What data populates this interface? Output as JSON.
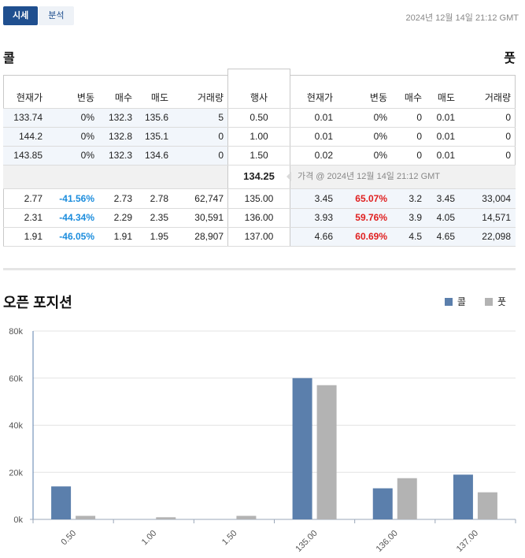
{
  "tabs": [
    {
      "label": "시세",
      "active": true
    },
    {
      "label": "분석",
      "active": false
    }
  ],
  "timestamp": "2024년 12월 14일 21:12 GMT",
  "calls_label": "콜",
  "puts_label": "풋",
  "headers": {
    "call": [
      "현재가",
      "변동",
      "매수",
      "매도",
      "거래량"
    ],
    "strike": "행사",
    "put": [
      "현재가",
      "변동",
      "매수",
      "매도",
      "거래량"
    ]
  },
  "rows_upper": [
    {
      "call": [
        "133.74",
        "0%",
        "132.3",
        "135.6",
        "5"
      ],
      "strike": "0.50",
      "put": [
        "0.01",
        "0%",
        "0",
        "0.01",
        "0"
      ]
    },
    {
      "call": [
        "144.2",
        "0%",
        "132.8",
        "135.1",
        "0"
      ],
      "strike": "1.00",
      "put": [
        "0.01",
        "0%",
        "0",
        "0.01",
        "0"
      ]
    },
    {
      "call": [
        "143.85",
        "0%",
        "132.3",
        "134.6",
        "0"
      ],
      "strike": "1.50",
      "put": [
        "0.02",
        "0%",
        "0",
        "0.01",
        "0"
      ]
    }
  ],
  "spot": {
    "price": "134.25",
    "label": "가격 @ 2024년 12월 14일 21:12 GMT"
  },
  "rows_lower": [
    {
      "call": [
        "2.77",
        "-41.56%",
        "2.73",
        "2.78",
        "62,747"
      ],
      "strike": "135.00",
      "put": [
        "3.45",
        "65.07%",
        "3.2",
        "3.45",
        "33,004"
      ]
    },
    {
      "call": [
        "2.31",
        "-44.34%",
        "2.29",
        "2.35",
        "30,591"
      ],
      "strike": "136.00",
      "put": [
        "3.93",
        "59.76%",
        "3.9",
        "4.05",
        "14,571"
      ]
    },
    {
      "call": [
        "1.91",
        "-46.05%",
        "1.91",
        "1.95",
        "28,907"
      ],
      "strike": "137.00",
      "put": [
        "4.66",
        "60.69%",
        "4.5",
        "4.65",
        "22,098"
      ]
    }
  ],
  "oi_title": "오픈 포지션",
  "colors": {
    "call": "#5b7fac",
    "put": "#b3b3b3",
    "neg": "#1c8ddd",
    "pos": "#e02020",
    "accent": "#1f4f8f"
  },
  "chart_data": {
    "type": "bar",
    "title": "오픈 포지션",
    "categories": [
      "0.50",
      "1.00",
      "1.50",
      "135.00",
      "136.00",
      "137.00"
    ],
    "series": [
      {
        "name": "콜",
        "values": [
          14000,
          0,
          0,
          60000,
          13200,
          19000
        ]
      },
      {
        "name": "풋",
        "values": [
          1500,
          900,
          1500,
          57000,
          17500,
          11500
        ]
      }
    ],
    "ylim": [
      0,
      80000
    ],
    "yticks": [
      "0k",
      "20k",
      "40k",
      "60k",
      "80k"
    ],
    "grid": true,
    "legend": "top-right"
  }
}
